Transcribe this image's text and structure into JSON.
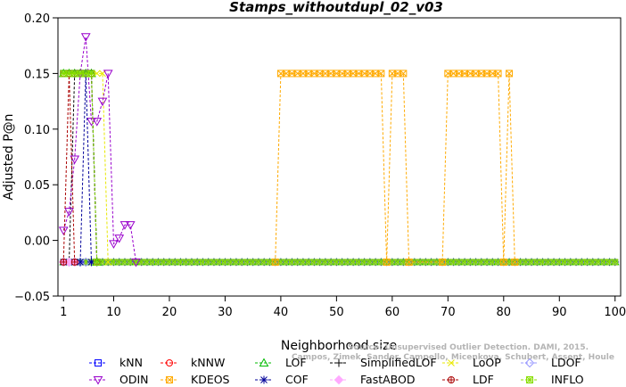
{
  "chart_data": {
    "type": "line",
    "title": "Stamps_withoutdupl_02_v03",
    "xlabel": "Neighborhood size",
    "ylabel": "Adjusted P@n",
    "xlim": [
      0,
      101
    ],
    "ylim": [
      -0.05,
      0.2
    ],
    "xticks": [
      1,
      10,
      20,
      30,
      40,
      50,
      60,
      70,
      80,
      90,
      100
    ],
    "yticks": [
      -0.05,
      0.0,
      0.05,
      0.1,
      0.15,
      0.2
    ],
    "ytick_labels": [
      "−0.05",
      "0.00",
      "0.05",
      "0.10",
      "0.15",
      "0.20"
    ],
    "grid": false,
    "legend_position": "bottom",
    "watermark": [
      "Source: Unsupervised Outlier Detection. DAMI, 2015.",
      "Campos, Zimek, Sander, Campello, Micenkova, Schubert, Assent, Houle"
    ],
    "baseline": -0.0195,
    "series": [
      {
        "name": "kNN",
        "color": "#0000ff",
        "marker": "square",
        "points": [
          [
            1,
            0.15
          ],
          [
            2,
            0.15
          ],
          [
            3,
            0.15
          ],
          [
            4,
            0.15
          ],
          [
            5,
            0.15
          ],
          [
            6,
            0.15
          ],
          [
            7,
            -0.0195
          ]
        ]
      },
      {
        "name": "kNNW",
        "color": "#ff0000",
        "marker": "circle",
        "points": [
          [
            1,
            0.15
          ],
          [
            2,
            0.15
          ],
          [
            3,
            0.15
          ],
          [
            4,
            0.15
          ],
          [
            5,
            0.15
          ],
          [
            6,
            0.15
          ],
          [
            7,
            -0.0195
          ]
        ]
      },
      {
        "name": "LOF",
        "color": "#00bb00",
        "marker": "triangle-up",
        "points": [
          [
            1,
            0.15
          ],
          [
            2,
            0.15
          ],
          [
            3,
            0.15
          ],
          [
            4,
            0.15
          ],
          [
            5,
            0.15
          ],
          [
            6,
            0.15
          ],
          [
            7,
            -0.0195
          ]
        ]
      },
      {
        "name": "SimplifiedLOF",
        "color": "#000000",
        "marker": "plus",
        "points": [
          [
            1,
            -0.0195
          ],
          [
            2,
            -0.0195
          ],
          [
            3,
            0.15
          ],
          [
            4,
            0.15
          ],
          [
            5,
            0.15
          ],
          [
            6,
            0.15
          ],
          [
            7,
            -0.0195
          ]
        ]
      },
      {
        "name": "LoOP",
        "color": "#e8e800",
        "marker": "x",
        "points": [
          [
            1,
            0.15
          ],
          [
            2,
            0.15
          ],
          [
            3,
            0.15
          ],
          [
            4,
            0.15
          ],
          [
            5,
            0.15
          ],
          [
            6,
            0.15
          ],
          [
            7,
            0.15
          ],
          [
            8,
            0.15
          ],
          [
            9,
            -0.0195
          ]
        ]
      },
      {
        "name": "LDOF",
        "color": "#9999ff",
        "marker": "diamond",
        "points": [
          [
            1,
            -0.0195
          ],
          [
            2,
            -0.0195
          ],
          [
            3,
            -0.0195
          ],
          [
            4,
            -0.0195
          ],
          [
            5,
            -0.0195
          ]
        ]
      },
      {
        "name": "ODIN",
        "color": "#9900cc",
        "marker": "triangle-down",
        "points": [
          [
            1,
            0.009
          ],
          [
            2,
            0.026
          ],
          [
            3,
            0.073
          ],
          [
            4,
            0.15
          ],
          [
            5,
            0.183
          ],
          [
            6,
            0.107
          ],
          [
            7,
            0.107
          ],
          [
            8,
            0.125
          ],
          [
            9,
            0.15
          ],
          [
            10,
            -0.003
          ],
          [
            11,
            0.002
          ],
          [
            12,
            0.014
          ],
          [
            13,
            0.014
          ],
          [
            14,
            -0.0195
          ]
        ]
      },
      {
        "name": "KDEOS",
        "color": "#ffaa00",
        "marker": "boxed-x",
        "points": [
          [
            39,
            -0.0195
          ],
          [
            40,
            0.15
          ],
          [
            41,
            0.15
          ],
          [
            42,
            0.15
          ],
          [
            43,
            0.15
          ],
          [
            44,
            0.15
          ],
          [
            45,
            0.15
          ],
          [
            46,
            0.15
          ],
          [
            47,
            0.15
          ],
          [
            48,
            0.15
          ],
          [
            49,
            0.15
          ],
          [
            50,
            0.15
          ],
          [
            51,
            0.15
          ],
          [
            52,
            0.15
          ],
          [
            53,
            0.15
          ],
          [
            54,
            0.15
          ],
          [
            55,
            0.15
          ],
          [
            56,
            0.15
          ],
          [
            57,
            0.15
          ],
          [
            58,
            0.15
          ],
          [
            59,
            -0.0195
          ],
          [
            60,
            0.15
          ],
          [
            61,
            0.15
          ],
          [
            62,
            0.15
          ],
          [
            63,
            -0.0195
          ],
          [
            69,
            -0.0195
          ],
          [
            70,
            0.15
          ],
          [
            71,
            0.15
          ],
          [
            72,
            0.15
          ],
          [
            73,
            0.15
          ],
          [
            74,
            0.15
          ],
          [
            75,
            0.15
          ],
          [
            76,
            0.15
          ],
          [
            77,
            0.15
          ],
          [
            78,
            0.15
          ],
          [
            79,
            0.15
          ],
          [
            80,
            -0.0195
          ],
          [
            81,
            0.15
          ],
          [
            82,
            -0.0195
          ]
        ]
      },
      {
        "name": "COF",
        "color": "#000099",
        "marker": "asterisk",
        "points": [
          [
            1,
            -0.0195
          ],
          [
            2,
            -0.0195
          ],
          [
            3,
            -0.0195
          ],
          [
            4,
            -0.0195
          ],
          [
            5,
            0.15
          ],
          [
            6,
            -0.0195
          ]
        ]
      },
      {
        "name": "FastABOD",
        "color": "#ffaaff",
        "marker": "diamond-filled",
        "points": [
          [
            1,
            -0.0195
          ],
          [
            2,
            -0.0195
          ],
          [
            3,
            -0.0195
          ]
        ]
      },
      {
        "name": "LDF",
        "color": "#aa0000",
        "marker": "circle-plus",
        "points": [
          [
            1,
            -0.0195
          ],
          [
            2,
            0.15
          ],
          [
            3,
            -0.0195
          ]
        ]
      },
      {
        "name": "INFLO",
        "color": "#88dd00",
        "marker": "boxed-star",
        "points": [
          [
            1,
            0.15
          ],
          [
            2,
            0.15
          ],
          [
            3,
            0.15
          ],
          [
            4,
            0.15
          ],
          [
            5,
            0.15
          ],
          [
            6,
            0.15
          ],
          [
            7,
            -0.0195
          ]
        ]
      }
    ]
  }
}
